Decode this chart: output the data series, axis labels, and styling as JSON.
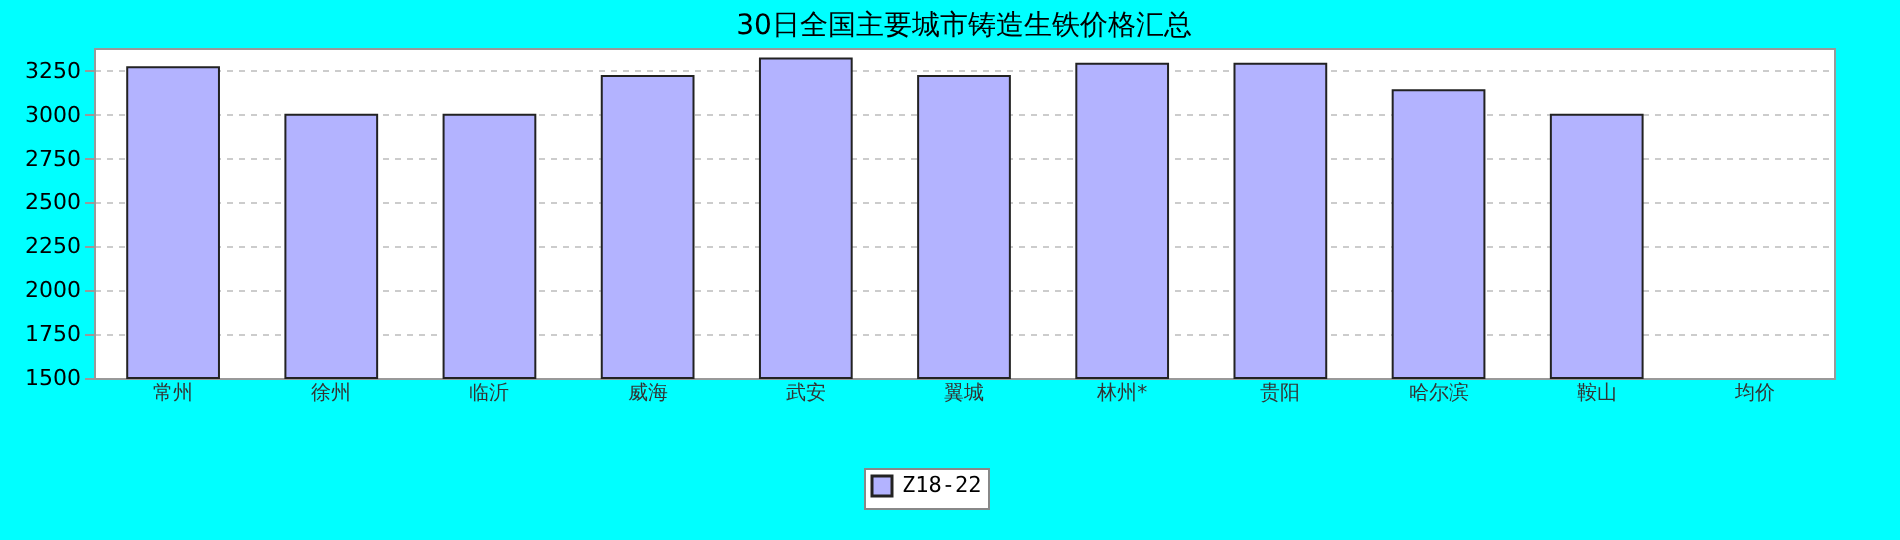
{
  "chart_data": {
    "type": "bar",
    "title": "30日全国主要城市铸造生铁价格汇总",
    "categories": [
      "常州",
      "徐州",
      "临沂",
      "威海",
      "武安",
      "翼城",
      "林州*",
      "贵阳",
      "哈尔滨",
      "鞍山",
      "均价"
    ],
    "series": [
      {
        "name": "Z18-22",
        "color": "#b3b3ff",
        "values": [
          3270,
          3000,
          3000,
          3220,
          3320,
          3220,
          3290,
          3290,
          3140,
          3000,
          null
        ]
      }
    ],
    "ylim": [
      1500,
      3380
    ],
    "yticks": [
      1500,
      1750,
      2000,
      2250,
      2500,
      2750,
      3000,
      3250
    ],
    "grid": "y",
    "legend": "bottom"
  }
}
